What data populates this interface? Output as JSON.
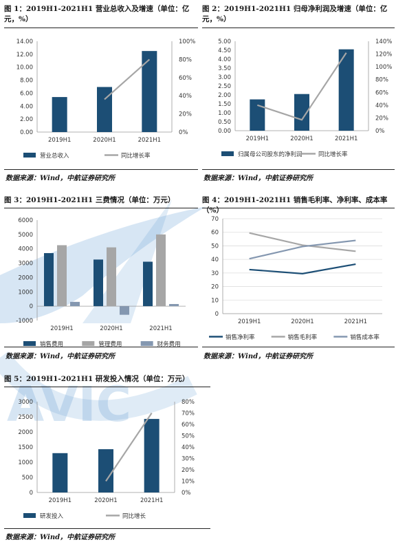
{
  "colors": {
    "navy": "#1c4e75",
    "gray": "#a6a6a6",
    "slate": "#8497b0",
    "watermark": "#6ea6d6"
  },
  "charts": [
    {
      "id": "c1",
      "title": "图 1：2019H1-2021H1 营业总收入及增速（单位：亿元，%）",
      "source": "数据来源：Wind，中航证券研究所",
      "chart_data": {
        "type": "bar",
        "categories": [
          "2019H1",
          "2020H1",
          "2021H1"
        ],
        "series": [
          {
            "name": "营业总收入",
            "kind": "bar",
            "axis": "left",
            "values": [
              5.4,
              6.95,
              12.5
            ]
          },
          {
            "name": "同比增长率",
            "kind": "line",
            "axis": "right",
            "values": [
              null,
              36,
              80
            ]
          }
        ],
        "ylim": [
          0,
          14
        ],
        "yticks": [
          "0.00",
          "2.00",
          "4.00",
          "6.00",
          "8.00",
          "10.00",
          "12.00",
          "14.00"
        ],
        "y2lim": [
          0,
          100
        ],
        "y2ticks": [
          "0%",
          "20%",
          "40%",
          "60%",
          "80%",
          "100%"
        ],
        "legend": "bottom"
      }
    },
    {
      "id": "c2",
      "title": "图 2：2019H1-2021H1 归母净利润及增速（单位：亿元，%）",
      "source": "数据来源：Wind，中航证券研究所",
      "chart_data": {
        "type": "bar",
        "categories": [
          "2019H1",
          "2020H1",
          "2021H1"
        ],
        "series": [
          {
            "name": "归属母公司股东的净利润",
            "kind": "bar",
            "axis": "left",
            "values": [
              1.75,
              2.05,
              4.55
            ]
          },
          {
            "name": "同比增长率",
            "kind": "line",
            "axis": "right",
            "values": [
              40,
              17,
              122
            ]
          }
        ],
        "ylim": [
          0,
          5
        ],
        "yticks": [
          "0.00",
          "0.50",
          "1.00",
          "1.50",
          "2.00",
          "2.50",
          "3.00",
          "3.50",
          "4.00",
          "4.50",
          "5.00"
        ],
        "y2lim": [
          0,
          140
        ],
        "y2ticks": [
          "0%",
          "20%",
          "40%",
          "60%",
          "80%",
          "100%",
          "120%",
          "140%"
        ],
        "legend": "bottom"
      }
    },
    {
      "id": "c3",
      "title": "图 3：2019H1-2021H1 三费情况（单位：万元）",
      "source": "数据来源：Wind，中航证券研究所",
      "chart_data": {
        "type": "bar",
        "categories": [
          "2019H1",
          "2020H1",
          "2021H1"
        ],
        "series": [
          {
            "name": "销售费用",
            "kind": "bar",
            "color": "navy",
            "values": [
              3700,
              3250,
              3100
            ]
          },
          {
            "name": "管理费用",
            "kind": "bar",
            "color": "gray",
            "values": [
              4250,
              4100,
              5000
            ]
          },
          {
            "name": "财务费用",
            "kind": "bar",
            "color": "slate",
            "values": [
              300,
              -600,
              150
            ]
          }
        ],
        "ylim": [
          -1000,
          6000
        ],
        "yticks": [
          "-1000",
          "0",
          "1000",
          "2000",
          "3000",
          "4000",
          "5000",
          "6000"
        ],
        "legend": "bottom"
      }
    },
    {
      "id": "c4",
      "title": "图 4：2019H1-2021H1 销售毛利率、净利率、成本率（%）",
      "source": "数据来源：Wind，中航证券研究所",
      "chart_data": {
        "type": "line",
        "categories": [
          "2019H1",
          "2020H1",
          "2021H1"
        ],
        "series": [
          {
            "name": "销售净利率",
            "color": "navy",
            "values": [
              32.5,
              29.5,
              36.5
            ]
          },
          {
            "name": "销售毛利率",
            "color": "gray",
            "values": [
              59.5,
              50.5,
              46
            ]
          },
          {
            "name": "销售成本率",
            "color": "slate",
            "values": [
              40.5,
              49.5,
              54
            ]
          }
        ],
        "ylim": [
          0,
          70
        ],
        "yticks": [
          "0",
          "10",
          "20",
          "30",
          "40",
          "50",
          "60",
          "70"
        ],
        "legend": "bottom"
      }
    },
    {
      "id": "c5",
      "title": "图 5：2019H1-2021H1 研发投入情况（单位：万元）",
      "source": "数据来源：Wind，中航证券研究所",
      "chart_data": {
        "type": "bar",
        "categories": [
          "2019H1",
          "2020H1",
          "2021H1"
        ],
        "series": [
          {
            "name": "研发投入",
            "kind": "bar",
            "axis": "left",
            "values": [
              1300,
              1430,
              2430
            ]
          },
          {
            "name": "同比增长",
            "kind": "line",
            "axis": "right",
            "values": [
              null,
              10,
              70
            ]
          }
        ],
        "ylim": [
          0,
          3000
        ],
        "yticks": [
          "0",
          "500",
          "1000",
          "1500",
          "2000",
          "2500",
          "3000"
        ],
        "y2lim": [
          0,
          80
        ],
        "y2ticks": [
          "0%",
          "10%",
          "20%",
          "30%",
          "40%",
          "50%",
          "60%",
          "70%",
          "80%"
        ],
        "legend": "bottom"
      }
    }
  ],
  "watermark": {
    "text": "AVIC"
  }
}
